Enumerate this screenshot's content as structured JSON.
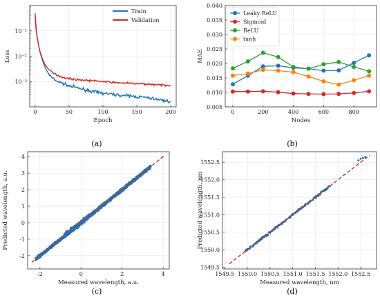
{
  "chart_data": [
    {
      "type": "line",
      "caption": "(a)",
      "xlabel": "Epoch",
      "ylabel": "Loss",
      "xlim": [
        -8,
        208
      ],
      "ylim": [
        0.0001,
        1
      ],
      "yscale": "log",
      "xticks": [
        0,
        50,
        100,
        150,
        200
      ],
      "yticks": [
        0.1,
        0.01,
        0.001
      ],
      "ytick_labels": [
        "10⁻¹",
        "10⁻²",
        "10⁻³"
      ],
      "grid": true,
      "legend": "top-right",
      "x": [
        0,
        1,
        2,
        3,
        4,
        5,
        6,
        8,
        10,
        12,
        15,
        20,
        25,
        30,
        40,
        50,
        60,
        70,
        80,
        90,
        100,
        110,
        120,
        130,
        140,
        150,
        160,
        170,
        180,
        190,
        200
      ],
      "series": [
        {
          "name": "Train",
          "color": "#1f77b4",
          "values": [
            0.5,
            0.2,
            0.1,
            0.06,
            0.04,
            0.028,
            0.02,
            0.012,
            0.008,
            0.0055,
            0.0035,
            0.002,
            0.0014,
            0.0011,
            0.00085,
            0.00068,
            0.00058,
            0.0005,
            0.00043,
            0.00038,
            0.00035,
            0.00032,
            0.0003,
            0.00028,
            0.00027,
            0.00025,
            0.00024,
            0.00022,
            0.0002,
            0.00018,
            0.00016
          ]
        },
        {
          "name": "Validation",
          "color": "#d62728",
          "values": [
            0.38,
            0.15,
            0.085,
            0.055,
            0.038,
            0.028,
            0.021,
            0.013,
            0.009,
            0.0065,
            0.0045,
            0.003,
            0.0023,
            0.0019,
            0.0015,
            0.0013,
            0.0012,
            0.00115,
            0.0011,
            0.00105,
            0.001,
            0.00095,
            0.0009,
            0.00088,
            0.00085,
            0.00082,
            0.0008,
            0.00078,
            0.00075,
            0.00072,
            0.0007
          ]
        }
      ]
    },
    {
      "type": "line",
      "caption": "(b)",
      "xlabel": "Nodes",
      "ylabel": "MAE",
      "xlim": [
        -50,
        950
      ],
      "ylim": [
        0.005,
        0.04
      ],
      "xticks": [
        0,
        200,
        400,
        600,
        800
      ],
      "yticks": [
        0.005,
        0.01,
        0.015,
        0.02,
        0.025,
        0.03,
        0.035,
        0.04
      ],
      "ytick_labels": [
        "0.005",
        "0.010",
        "0.015",
        "0.020",
        "0.025",
        "0.030",
        "0.035",
        "0.040"
      ],
      "grid": true,
      "legend": "top-left",
      "x": [
        0,
        100,
        200,
        300,
        400,
        500,
        600,
        700,
        800,
        900
      ],
      "series": [
        {
          "name": "Leaky ReLU",
          "color": "#1f77b4",
          "values": [
            0.0128,
            0.0158,
            0.019,
            0.0192,
            0.0185,
            0.0182,
            0.0175,
            0.0176,
            0.0202,
            0.0228
          ]
        },
        {
          "name": "Sigmoid",
          "color": "#d62728",
          "values": [
            0.0103,
            0.0103,
            0.0104,
            0.0101,
            0.0096,
            0.0095,
            0.0094,
            0.0095,
            0.0098,
            0.0104
          ]
        },
        {
          "name": "ReLU",
          "color": "#2ca02c",
          "values": [
            0.0183,
            0.0207,
            0.0237,
            0.0222,
            0.0188,
            0.0182,
            0.0197,
            0.0205,
            0.0188,
            0.0173
          ]
        },
        {
          "name": "tanh",
          "color": "#ff7f0e",
          "values": [
            0.0158,
            0.0165,
            0.0178,
            0.0175,
            0.017,
            0.0155,
            0.0138,
            0.0127,
            0.0142,
            0.0158
          ]
        }
      ]
    },
    {
      "type": "scatter",
      "caption": "(c)",
      "xlabel": "Measured wavelength, a.u.",
      "ylabel": "Predicted wavelength, a.u.",
      "xlim": [
        -2.6,
        4.3
      ],
      "ylim": [
        -2.8,
        4.3
      ],
      "xticks": [
        -2,
        0,
        2,
        4
      ],
      "yticks": [
        -2,
        -1,
        0,
        1,
        2,
        3,
        4
      ],
      "grid": true,
      "scatter_color": "#1f77b4",
      "fit_color": "#d62728",
      "fit_line": [
        [
          -2.4,
          -2.4
        ],
        [
          4.1,
          4.1
        ]
      ],
      "scatter_range": [
        -2.2,
        3.4
      ],
      "scatter_spread": 0.12
    },
    {
      "type": "scatter",
      "caption": "(d)",
      "xlabel": "Measured wavelength, nm",
      "ylabel": "Predicted wavelength, nm",
      "xlim": [
        1549.45,
        1552.85
      ],
      "ylim": [
        1549.45,
        1552.8
      ],
      "xticks": [
        1549.5,
        1550.0,
        1550.5,
        1551.0,
        1551.5,
        1552.0,
        1552.5
      ],
      "yticks": [
        1549.5,
        1550.0,
        1550.5,
        1551.0,
        1551.5,
        1552.0,
        1552.5
      ],
      "grid": true,
      "scatter_color": "#1f77b4",
      "fit_color": "#d62728",
      "fit_line": [
        [
          1549.6,
          1549.6
        ],
        [
          1552.7,
          1552.7
        ]
      ],
      "scatter_range": [
        1549.95,
        1551.85
      ],
      "scatter_extra": [
        [
          1552.45,
          1552.55
        ],
        [
          1552.5,
          1552.6
        ],
        [
          1552.55,
          1552.62
        ],
        [
          1552.6,
          1552.65
        ]
      ],
      "scatter_spread": 0.04
    }
  ]
}
